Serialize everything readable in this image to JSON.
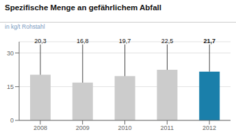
{
  "chart_data": {
    "type": "bar",
    "title": "Spezifische Menge an gefährlichem Abfall",
    "subtitle": "in kg/t Rohstahl",
    "categories": [
      "2008",
      "2009",
      "2010",
      "2011",
      "2012"
    ],
    "values": [
      20.3,
      16.8,
      19.7,
      22.5,
      21.7
    ],
    "value_labels": [
      "20,3",
      "16,8",
      "19,7",
      "22,5",
      "21,7"
    ],
    "colors": [
      "#cccccc",
      "#cccccc",
      "#cccccc",
      "#cccccc",
      "#1a7faa"
    ],
    "ylim": [
      0,
      35
    ],
    "yticks": [
      0,
      15,
      30
    ],
    "grid": true,
    "data_labels": true
  }
}
